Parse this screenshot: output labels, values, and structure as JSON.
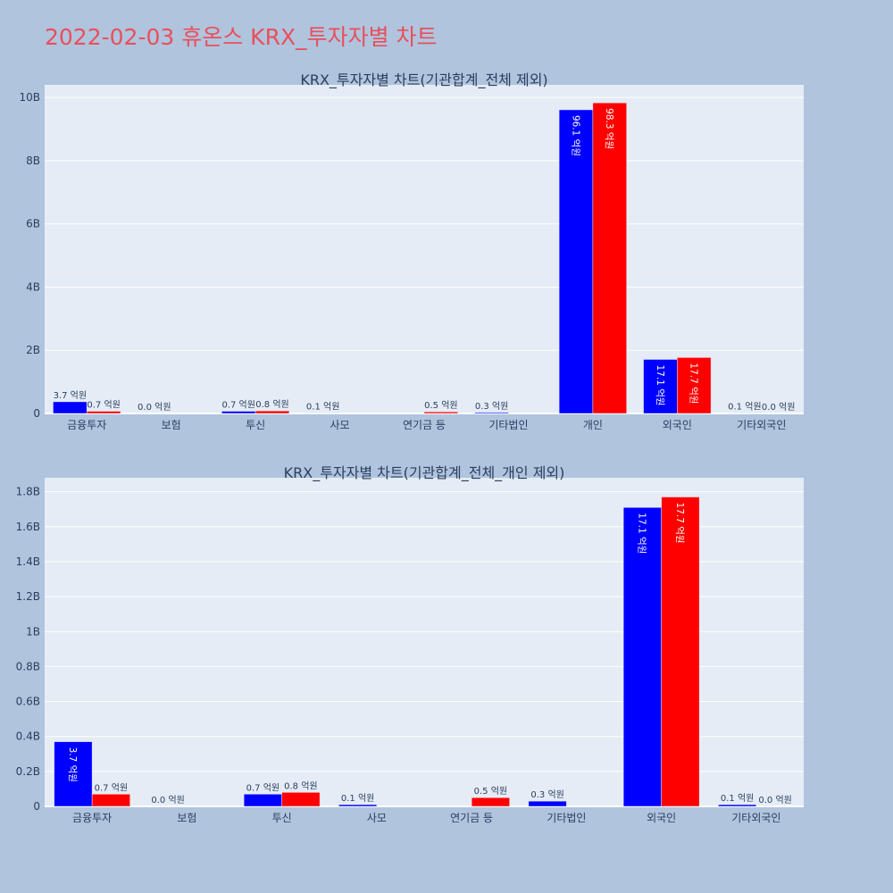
{
  "title": "2022-02-03 휴온스 KRX_투자자별 차트",
  "colors": {
    "buy": "#0000ff",
    "sell": "#ff0000",
    "title": "#e8505b"
  },
  "chart_data": [
    {
      "type": "bar",
      "title": "KRX_투자자별 차트(기관합계_전체 제외)",
      "categories": [
        "금융투자",
        "보험",
        "투신",
        "사모",
        "연기금 등",
        "기타법인",
        "개인",
        "외국인",
        "기타외국인"
      ],
      "series": [
        {
          "values": [
            0.37,
            0.0,
            0.07,
            0.01,
            0.0,
            0.03,
            9.61,
            1.71,
            0.01
          ],
          "labels": [
            "3.7 억원",
            "0.0 억원",
            "0.7 억원",
            "0.1 억원",
            "",
            "0.3 억원",
            "96.1 억원",
            "17.1 억원",
            "0.1 억원"
          ]
        },
        {
          "values": [
            0.07,
            0.0,
            0.08,
            0.0,
            0.05,
            0.0,
            9.83,
            1.77,
            0.0
          ],
          "labels": [
            "0.7 억원",
            "",
            "0.8 억원",
            "",
            "0.5 억원",
            "",
            "98.3 억원",
            "17.7 억원",
            "0.0 억원"
          ]
        }
      ],
      "ylim": [
        0,
        10.4
      ],
      "yticks": [
        0,
        2,
        4,
        6,
        8,
        10
      ],
      "ytick_labels": [
        "0",
        "2B",
        "4B",
        "6B",
        "8B",
        "10B"
      ],
      "grid": true
    },
    {
      "type": "bar",
      "title": "KRX_투자자별 차트(기관합계_전체_개인 제외)",
      "categories": [
        "금융투자",
        "보험",
        "투신",
        "사모",
        "연기금 등",
        "기타법인",
        "외국인",
        "기타외국인"
      ],
      "series": [
        {
          "values": [
            0.37,
            0.0,
            0.07,
            0.01,
            0.0,
            0.03,
            1.71,
            0.01
          ],
          "labels": [
            "3.7 억원",
            "0.0 억원",
            "0.7 억원",
            "0.1 억원",
            "",
            "0.3 억원",
            "17.1 억원",
            "0.1 억원"
          ]
        },
        {
          "values": [
            0.07,
            0.0,
            0.08,
            0.0,
            0.05,
            0.0,
            1.77,
            0.0
          ],
          "labels": [
            "0.7 억원",
            "",
            "0.8 억원",
            "",
            "0.5 억원",
            "",
            "17.7 억원",
            "0.0 억원"
          ]
        }
      ],
      "ylim": [
        0,
        1.88
      ],
      "yticks": [
        0,
        0.2,
        0.4,
        0.6,
        0.8,
        1.0,
        1.2,
        1.4,
        1.6,
        1.8
      ],
      "ytick_labels": [
        "0",
        "0.2B",
        "0.4B",
        "0.6B",
        "0.8B",
        "1B",
        "1.2B",
        "1.4B",
        "1.6B",
        "1.8B"
      ],
      "grid": true
    }
  ]
}
